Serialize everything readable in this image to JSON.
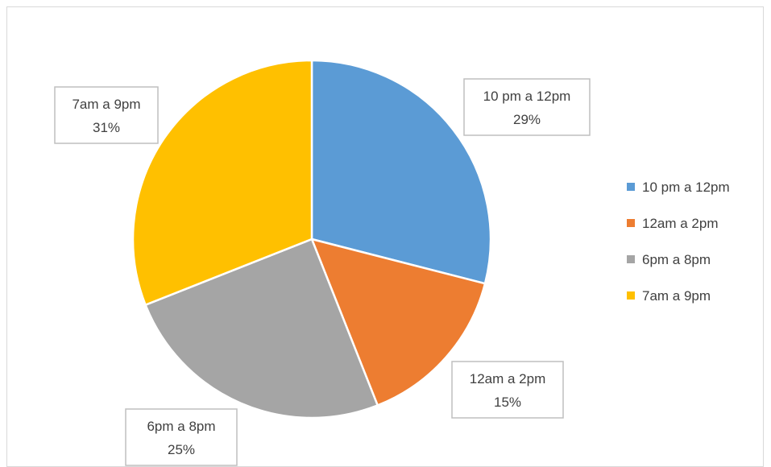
{
  "chart_data": {
    "type": "pie",
    "title": "",
    "categories": [
      "10 pm a 12pm",
      "12am a 2pm",
      "6pm a 8pm",
      "7am a 9pm"
    ],
    "values": [
      29,
      15,
      25,
      31
    ],
    "value_format": "percent",
    "data_labels": [
      {
        "category": "10 pm a 12pm",
        "percent": "29%"
      },
      {
        "category": "12am a 2pm",
        "percent": "15%"
      },
      {
        "category": "6pm a 8pm",
        "percent": "25%"
      },
      {
        "category": "7am a 9pm",
        "percent": "31%"
      }
    ],
    "colors": [
      "#5b9bd5",
      "#ed7d31",
      "#a5a5a5",
      "#ffc000"
    ],
    "legend": {
      "position": "right",
      "entries": [
        "10 pm a 12pm",
        "12am a 2pm",
        "6pm a 8pm",
        "7am a 9pm"
      ]
    }
  }
}
